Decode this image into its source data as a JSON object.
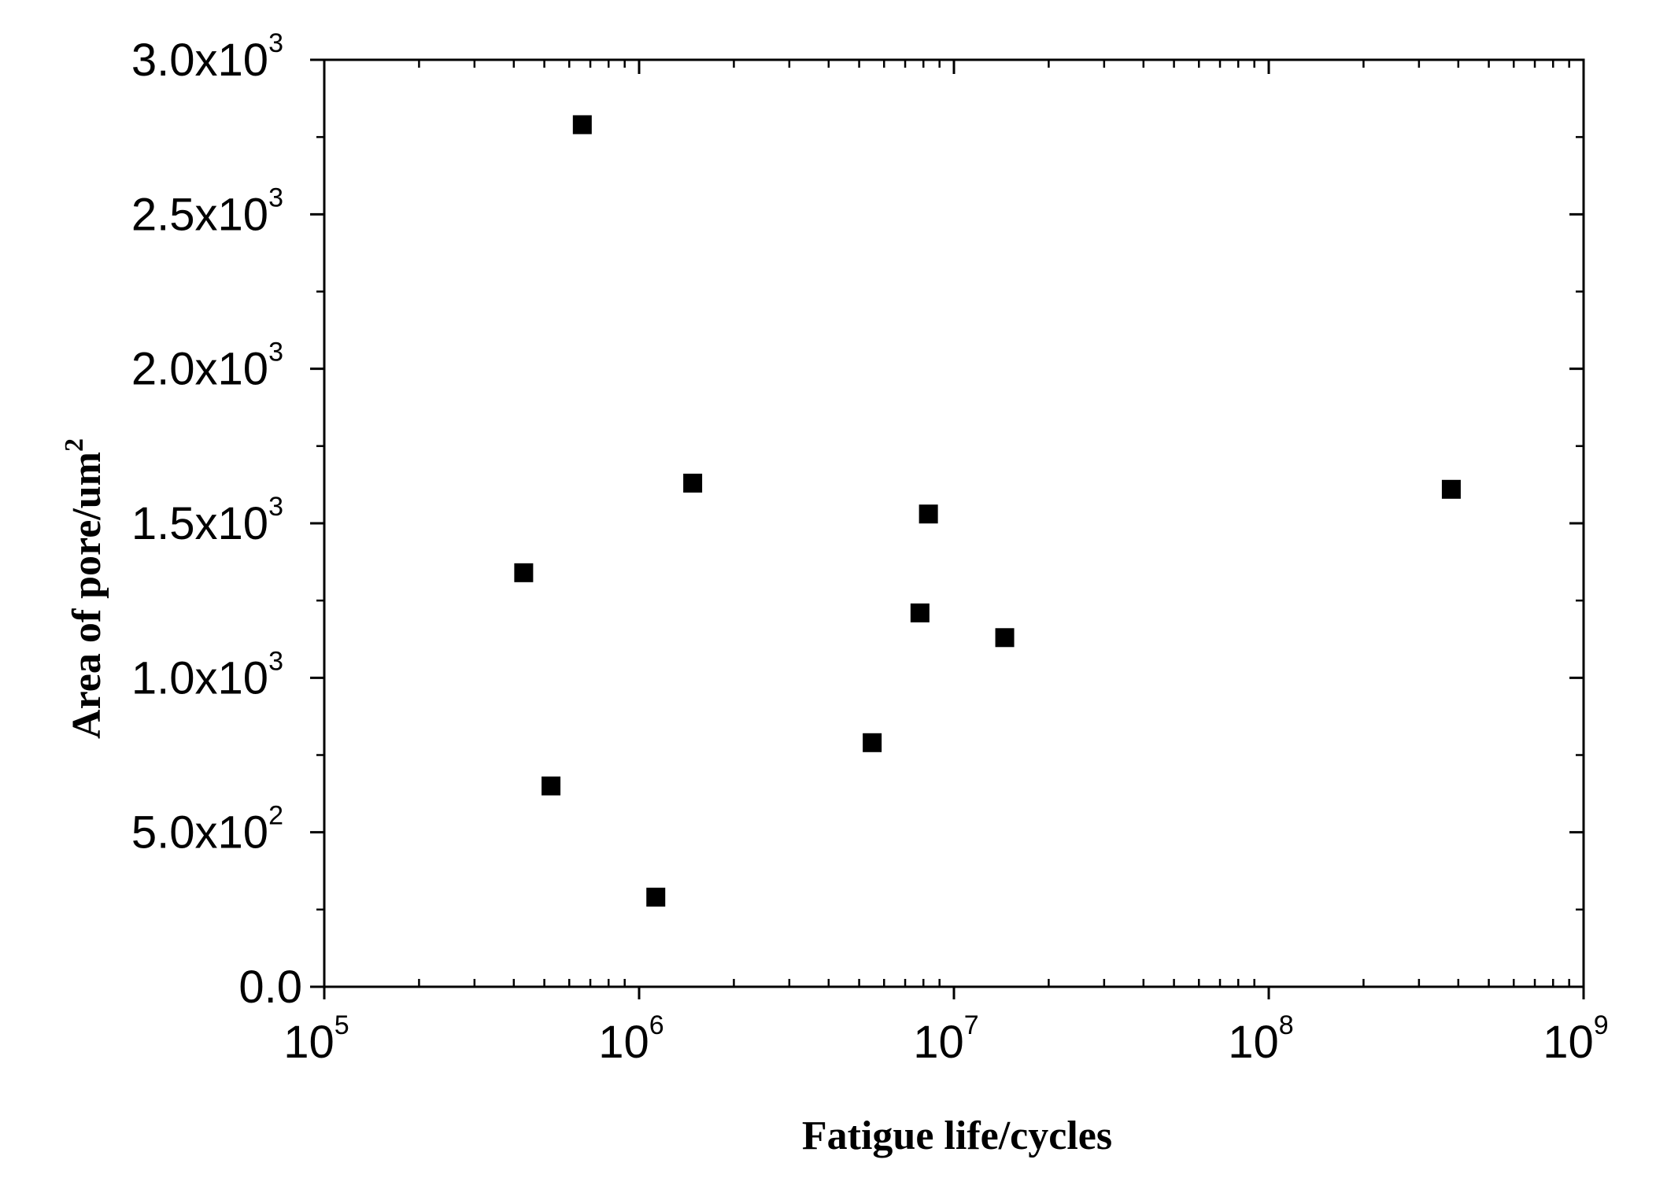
{
  "chart_data": {
    "type": "scatter",
    "title": "",
    "xlabel": "Fatigue life/cycles",
    "ylabel": "Area of pore/um",
    "ylabel_superscript": "2",
    "x_scale": "log",
    "xlim": [
      100000,
      1000000000
    ],
    "ylim": [
      0,
      3000
    ],
    "x_ticks": [
      {
        "value": 100000,
        "base": "10",
        "exp": "5"
      },
      {
        "value": 1000000,
        "base": "10",
        "exp": "6"
      },
      {
        "value": 10000000,
        "base": "10",
        "exp": "7"
      },
      {
        "value": 100000000,
        "base": "10",
        "exp": "8"
      },
      {
        "value": 1000000000,
        "base": "10",
        "exp": "9"
      }
    ],
    "y_ticks": [
      {
        "value": 0,
        "label": "0.0",
        "exp": ""
      },
      {
        "value": 500,
        "label": "5.0x10",
        "exp": "2"
      },
      {
        "value": 1000,
        "label": "1.0x10",
        "exp": "3"
      },
      {
        "value": 1500,
        "label": "1.5x10",
        "exp": "3"
      },
      {
        "value": 2000,
        "label": "2.0x10",
        "exp": "3"
      },
      {
        "value": 2500,
        "label": "2.5x10",
        "exp": "3"
      },
      {
        "value": 3000,
        "label": "3.0x10",
        "exp": "3"
      }
    ],
    "grid": false,
    "marker": "square",
    "marker_color": "#000000",
    "series": [
      {
        "points": [
          {
            "x": 430000,
            "y": 1340
          },
          {
            "x": 525000,
            "y": 650
          },
          {
            "x": 660000,
            "y": 2790
          },
          {
            "x": 1130000,
            "y": 290
          },
          {
            "x": 1480000,
            "y": 1630
          },
          {
            "x": 5500000,
            "y": 790
          },
          {
            "x": 7800000,
            "y": 1210
          },
          {
            "x": 8300000,
            "y": 1530
          },
          {
            "x": 14500000,
            "y": 1130
          },
          {
            "x": 380000000,
            "y": 1610
          }
        ]
      }
    ]
  }
}
